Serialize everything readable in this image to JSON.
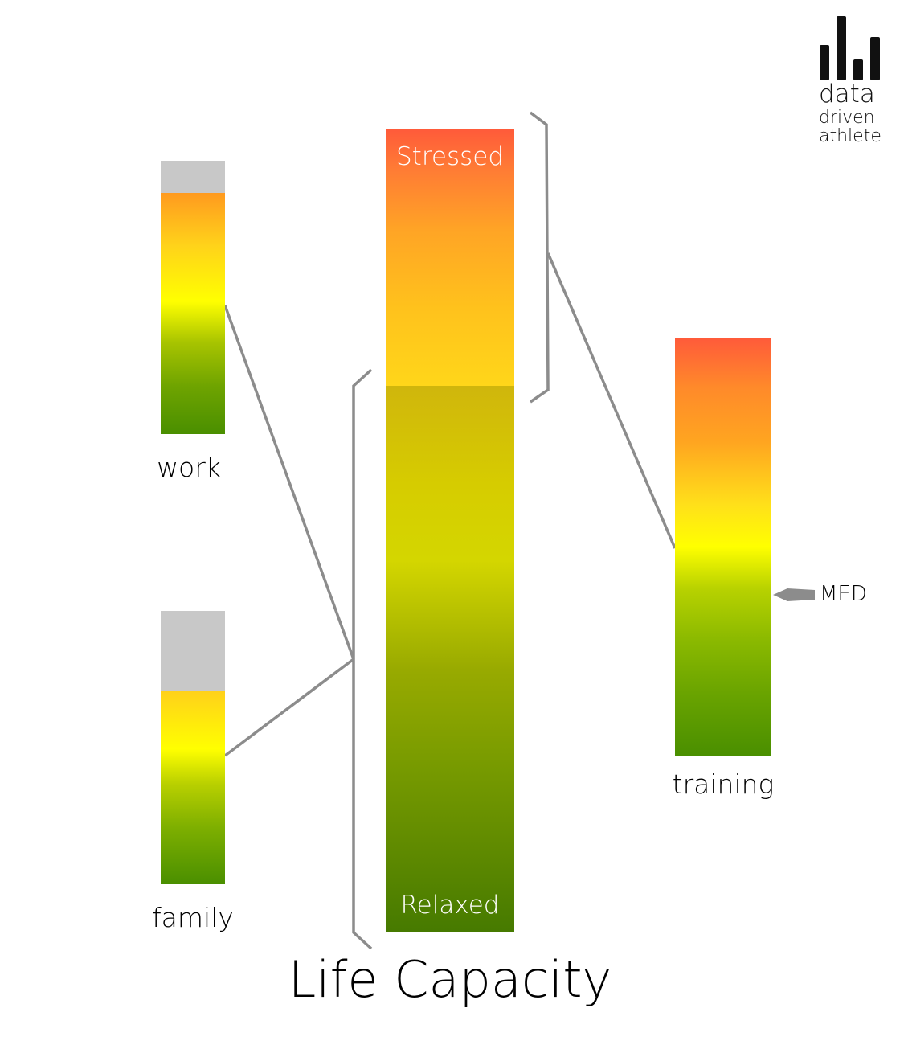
{
  "logo": {
    "line1": "data",
    "line2": "driven",
    "line3": "athlete"
  },
  "bars": {
    "work": {
      "label": "work",
      "fill_fraction": 0.88
    },
    "family": {
      "label": "family",
      "fill_fraction": 0.71
    },
    "training": {
      "label": "training",
      "marker_label": "MED"
    }
  },
  "life_capacity": {
    "title": "Life Capacity",
    "top_label": "Stressed",
    "bottom_label": "Relaxed",
    "stressed_fraction": 0.32
  },
  "colors": {
    "stress_red": "#ff5a3a",
    "orange": "#ffa525",
    "yellow": "#ffff00",
    "green": "#4a8f00",
    "empty_gray": "#c8c8c8",
    "line_gray": "#8c8c8c"
  }
}
